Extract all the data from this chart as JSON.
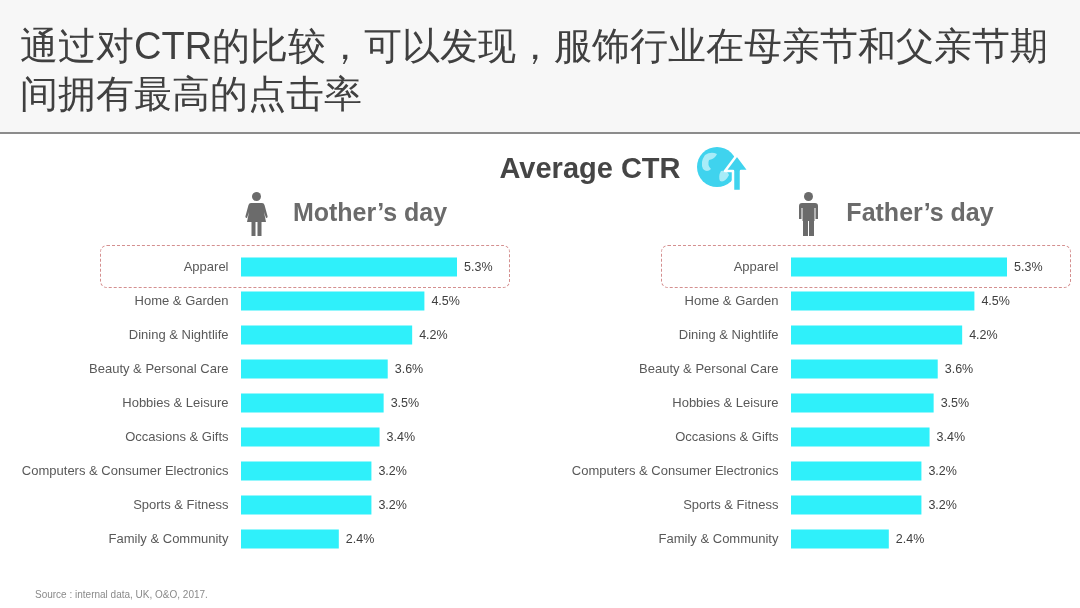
{
  "chart_data": [
    {
      "type": "other",
      "title": "通过对CTR的比较，可以发现，服饰行业在母亲节和父亲节期间拥有最高的点击率",
      "subtitle": "Average CTR",
      "annotations": [
        "Source : internal data, UK, O&O, 2017."
      ]
    },
    {
      "type": "bar",
      "orientation": "horizontal",
      "title": "Mother’s day",
      "categories": [
        "Apparel",
        "Home & Garden",
        "Dining & Nightlife",
        "Beauty & Personal Care",
        "Hobbies & Leisure",
        "Occasions & Gifts",
        "Computers & Consumer Electronics",
        "Sports & Fitness",
        "Family & Community"
      ],
      "values": [
        5.3,
        4.5,
        4.2,
        3.6,
        3.5,
        3.4,
        3.2,
        3.2,
        2.4
      ],
      "value_labels": [
        "5.3%",
        "4.5%",
        "4.2%",
        "3.6%",
        "3.5%",
        "3.4%",
        "3.2%",
        "3.2%",
        "2.4%"
      ],
      "color": "#2ff0fa"
    },
    {
      "type": "bar",
      "orientation": "horizontal",
      "title": "Father’s day",
      "categories": [
        "Apparel",
        "Home & Garden",
        "Dining & Nightlife",
        "Beauty & Personal Care",
        "Hobbies & Leisure",
        "Occasions & Gifts",
        "Computers & Consumer Electronics",
        "Sports & Fitness",
        "Family & Community"
      ],
      "values": [
        5.3,
        4.5,
        4.2,
        3.6,
        3.5,
        3.4,
        3.2,
        3.2,
        2.4
      ],
      "value_labels": [
        "5.3%",
        "4.5%",
        "4.2%",
        "3.6%",
        "3.5%",
        "3.4%",
        "3.2%",
        "3.2%",
        "2.4%"
      ],
      "color": "#2ff0fa"
    }
  ]
}
